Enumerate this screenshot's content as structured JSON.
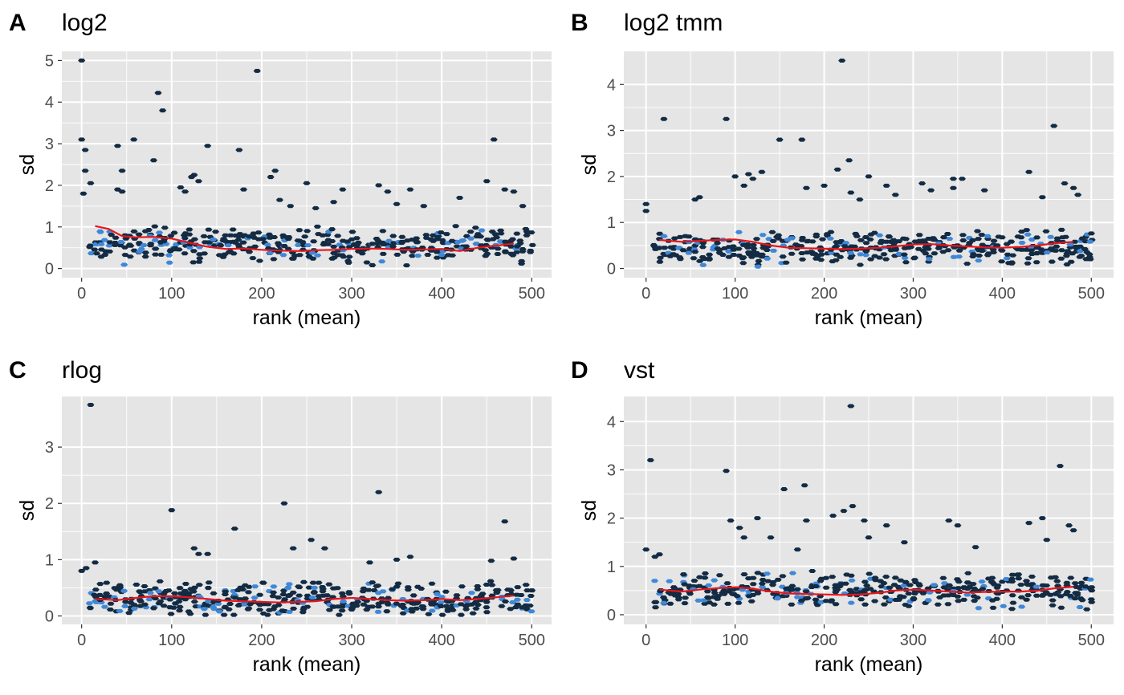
{
  "colors": {
    "panel_bg": "#e5e5e5",
    "grid": "#ffffff",
    "low_density": "#132b43",
    "high_density": "#3f88d8",
    "trend": "#e8151a"
  },
  "chart_data": [
    {
      "tag": "A",
      "title": "log2",
      "type": "hexbin",
      "xlabel": "rank (mean)",
      "ylabel": "sd",
      "xlim": [
        -22,
        522
      ],
      "ylim": [
        -0.22,
        5.22
      ],
      "xticks": [
        0,
        100,
        200,
        300,
        400,
        500
      ],
      "yticks": [
        0,
        1,
        2,
        3,
        4,
        5
      ],
      "outliers": [
        [
          0,
          5.0
        ],
        [
          0,
          3.1
        ],
        [
          4,
          2.85
        ],
        [
          4,
          2.35
        ],
        [
          10,
          2.05
        ],
        [
          2,
          1.8
        ],
        [
          40,
          2.95
        ],
        [
          45,
          2.35
        ],
        [
          40,
          1.9
        ],
        [
          45,
          1.85
        ],
        [
          58,
          3.1
        ],
        [
          85,
          4.22
        ],
        [
          90,
          3.8
        ],
        [
          80,
          2.6
        ],
        [
          110,
          1.95
        ],
        [
          115,
          1.85
        ],
        [
          125,
          2.25
        ],
        [
          122,
          2.2
        ],
        [
          140,
          2.95
        ],
        [
          130,
          2.1
        ],
        [
          175,
          2.85
        ],
        [
          195,
          4.75
        ],
        [
          180,
          1.9
        ],
        [
          210,
          2.2
        ],
        [
          215,
          2.35
        ],
        [
          220,
          1.65
        ],
        [
          232,
          1.5
        ],
        [
          250,
          2.05
        ],
        [
          260,
          1.45
        ],
        [
          280,
          1.6
        ],
        [
          290,
          1.9
        ],
        [
          330,
          2.0
        ],
        [
          340,
          1.85
        ],
        [
          350,
          1.55
        ],
        [
          365,
          1.9
        ],
        [
          380,
          1.5
        ],
        [
          420,
          1.7
        ],
        [
          450,
          2.1
        ],
        [
          458,
          3.1
        ],
        [
          470,
          1.9
        ],
        [
          480,
          1.85
        ],
        [
          490,
          1.5
        ]
      ],
      "cloud": {
        "y0": 0.55,
        "spread": 0.38,
        "seed": 11
      },
      "trend": {
        "x": [
          15,
          30,
          45,
          60,
          80,
          100,
          120,
          140,
          160,
          180,
          200,
          220,
          240,
          260,
          280,
          300,
          320,
          340,
          360,
          380,
          400,
          420,
          440,
          460,
          480
        ],
        "y": [
          1.02,
          0.95,
          0.78,
          0.75,
          0.76,
          0.72,
          0.62,
          0.52,
          0.47,
          0.48,
          0.45,
          0.43,
          0.42,
          0.44,
          0.45,
          0.47,
          0.48,
          0.47,
          0.45,
          0.46,
          0.47,
          0.42,
          0.5,
          0.55,
          0.6
        ]
      }
    },
    {
      "tag": "B",
      "title": "log2 tmm",
      "type": "hexbin",
      "xlabel": "rank (mean)",
      "ylabel": "sd",
      "xlim": [
        -25,
        525
      ],
      "ylim": [
        -0.2,
        4.72
      ],
      "xticks": [
        0,
        100,
        200,
        300,
        400,
        500
      ],
      "yticks": [
        0,
        1,
        2,
        3,
        4
      ],
      "outliers": [
        [
          20,
          3.25
        ],
        [
          0,
          1.4
        ],
        [
          0,
          1.25
        ],
        [
          60,
          1.55
        ],
        [
          55,
          1.5
        ],
        [
          90,
          3.25
        ],
        [
          100,
          2.0
        ],
        [
          110,
          1.8
        ],
        [
          115,
          2.05
        ],
        [
          130,
          2.1
        ],
        [
          120,
          1.95
        ],
        [
          150,
          2.8
        ],
        [
          175,
          2.8
        ],
        [
          180,
          1.75
        ],
        [
          200,
          1.8
        ],
        [
          215,
          2.15
        ],
        [
          220,
          4.52
        ],
        [
          228,
          2.35
        ],
        [
          230,
          1.65
        ],
        [
          240,
          1.5
        ],
        [
          250,
          2.0
        ],
        [
          270,
          1.8
        ],
        [
          280,
          1.6
        ],
        [
          310,
          1.85
        ],
        [
          320,
          1.7
        ],
        [
          345,
          1.95
        ],
        [
          355,
          1.95
        ],
        [
          345,
          1.75
        ],
        [
          380,
          1.7
        ],
        [
          430,
          2.1
        ],
        [
          445,
          1.55
        ],
        [
          458,
          3.1
        ],
        [
          470,
          1.85
        ],
        [
          480,
          1.75
        ],
        [
          485,
          1.6
        ]
      ],
      "cloud": {
        "y0": 0.45,
        "spread": 0.33,
        "seed": 23
      },
      "trend": {
        "x": [
          15,
          40,
          60,
          80,
          100,
          120,
          140,
          160,
          180,
          200,
          220,
          240,
          260,
          280,
          300,
          320,
          340,
          360,
          380,
          400,
          420,
          440,
          460,
          480
        ],
        "y": [
          0.62,
          0.58,
          0.6,
          0.62,
          0.63,
          0.58,
          0.5,
          0.45,
          0.44,
          0.43,
          0.42,
          0.43,
          0.45,
          0.48,
          0.52,
          0.53,
          0.5,
          0.48,
          0.46,
          0.45,
          0.47,
          0.5,
          0.55,
          0.58
        ]
      }
    },
    {
      "tag": "C",
      "title": "rlog",
      "type": "hexbin",
      "xlabel": "rank (mean)",
      "ylabel": "sd",
      "xlim": [
        -22,
        522
      ],
      "ylim": [
        -0.15,
        3.9
      ],
      "xticks": [
        0,
        100,
        200,
        300,
        400,
        500
      ],
      "yticks": [
        0,
        1,
        2,
        3
      ],
      "outliers": [
        [
          10,
          3.75
        ],
        [
          0,
          0.8
        ],
        [
          5,
          0.85
        ],
        [
          15,
          0.95
        ],
        [
          100,
          1.88
        ],
        [
          125,
          1.2
        ],
        [
          130,
          1.1
        ],
        [
          140,
          1.1
        ],
        [
          170,
          1.55
        ],
        [
          225,
          2.0
        ],
        [
          235,
          1.2
        ],
        [
          255,
          1.35
        ],
        [
          270,
          1.2
        ],
        [
          330,
          2.2
        ],
        [
          320,
          0.95
        ],
        [
          350,
          1.0
        ],
        [
          365,
          1.05
        ],
        [
          470,
          1.68
        ],
        [
          480,
          1.02
        ],
        [
          455,
          0.98
        ]
      ],
      "cloud": {
        "y0": 0.3,
        "spread": 0.28,
        "seed": 37
      },
      "trend": {
        "x": [
          15,
          40,
          60,
          80,
          100,
          120,
          140,
          160,
          180,
          200,
          220,
          240,
          260,
          280,
          300,
          320,
          340,
          360,
          380,
          400,
          420,
          440,
          460,
          480
        ],
        "y": [
          0.3,
          0.28,
          0.32,
          0.35,
          0.35,
          0.33,
          0.3,
          0.27,
          0.26,
          0.25,
          0.24,
          0.25,
          0.26,
          0.3,
          0.32,
          0.3,
          0.28,
          0.27,
          0.28,
          0.3,
          0.28,
          0.3,
          0.33,
          0.36
        ]
      }
    },
    {
      "tag": "D",
      "title": "vst",
      "type": "hexbin",
      "xlabel": "rank (mean)",
      "ylabel": "sd",
      "xlim": [
        -25,
        525
      ],
      "ylim": [
        -0.2,
        4.52
      ],
      "xticks": [
        0,
        100,
        200,
        300,
        400,
        500
      ],
      "yticks": [
        0,
        1,
        2,
        3,
        4
      ],
      "outliers": [
        [
          5,
          3.2
        ],
        [
          0,
          1.35
        ],
        [
          15,
          1.25
        ],
        [
          10,
          1.2
        ],
        [
          90,
          2.98
        ],
        [
          95,
          1.95
        ],
        [
          105,
          1.8
        ],
        [
          110,
          1.6
        ],
        [
          125,
          2.0
        ],
        [
          140,
          1.6
        ],
        [
          155,
          2.6
        ],
        [
          170,
          1.35
        ],
        [
          178,
          2.68
        ],
        [
          180,
          1.95
        ],
        [
          210,
          2.05
        ],
        [
          222,
          2.15
        ],
        [
          230,
          4.32
        ],
        [
          232,
          2.25
        ],
        [
          245,
          1.95
        ],
        [
          250,
          1.6
        ],
        [
          270,
          1.85
        ],
        [
          290,
          1.5
        ],
        [
          340,
          1.95
        ],
        [
          350,
          1.85
        ],
        [
          370,
          1.4
        ],
        [
          430,
          1.9
        ],
        [
          445,
          2.0
        ],
        [
          450,
          1.55
        ],
        [
          465,
          3.08
        ],
        [
          475,
          1.85
        ],
        [
          480,
          1.75
        ]
      ],
      "cloud": {
        "y0": 0.5,
        "spread": 0.33,
        "seed": 53
      },
      "trend": {
        "x": [
          15,
          40,
          60,
          80,
          100,
          120,
          140,
          160,
          180,
          200,
          220,
          240,
          260,
          280,
          300,
          320,
          340,
          360,
          380,
          400,
          420,
          440,
          460,
          480
        ],
        "y": [
          0.52,
          0.48,
          0.52,
          0.55,
          0.57,
          0.54,
          0.48,
          0.44,
          0.43,
          0.42,
          0.41,
          0.42,
          0.45,
          0.5,
          0.52,
          0.5,
          0.48,
          0.46,
          0.47,
          0.48,
          0.48,
          0.5,
          0.55,
          0.58
        ]
      }
    }
  ]
}
